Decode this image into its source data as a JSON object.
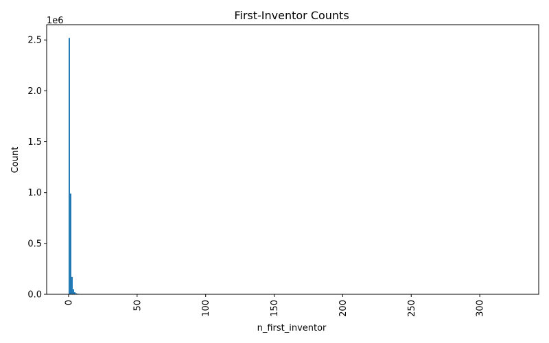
{
  "chart_data": {
    "type": "bar",
    "title": "First-Inventor Counts",
    "xlabel": "n_first_inventor",
    "ylabel": "Count",
    "y_offset_label": "1e6",
    "y_multiplier": 1000000,
    "xlim": [
      -16,
      343
    ],
    "ylim": [
      0,
      2650000
    ],
    "x_ticks": [
      0,
      50,
      100,
      150,
      200,
      250,
      300
    ],
    "y_ticks": [
      0,
      500000,
      1000000,
      1500000,
      2000000,
      2500000
    ],
    "y_tick_labels": [
      "0.0",
      "0.5",
      "1.0",
      "1.5",
      "2.0",
      "2.5"
    ],
    "bar_color": "#1f77b4",
    "grid": false,
    "bins": [
      {
        "x0": 0.0,
        "x1": 1.0,
        "value": 2520000
      },
      {
        "x0": 1.0,
        "x1": 2.0,
        "value": 990000
      },
      {
        "x0": 2.0,
        "x1": 3.0,
        "value": 170000
      },
      {
        "x0": 3.0,
        "x1": 4.0,
        "value": 50000
      },
      {
        "x0": 4.0,
        "x1": 5.0,
        "value": 20000
      },
      {
        "x0": 5.0,
        "x1": 6.0,
        "value": 10000
      },
      {
        "x0": 6.0,
        "x1": 7.0,
        "value": 6000
      },
      {
        "x0": 7.0,
        "x1": 8.0,
        "value": 4000
      },
      {
        "x0": 8.0,
        "x1": 9.0,
        "value": 2500
      },
      {
        "x0": 9.0,
        "x1": 10.0,
        "value": 1500
      },
      {
        "x0": 10.0,
        "x1": 12.0,
        "value": 1000
      },
      {
        "x0": 12.0,
        "x1": 15.0,
        "value": 500
      }
    ]
  }
}
